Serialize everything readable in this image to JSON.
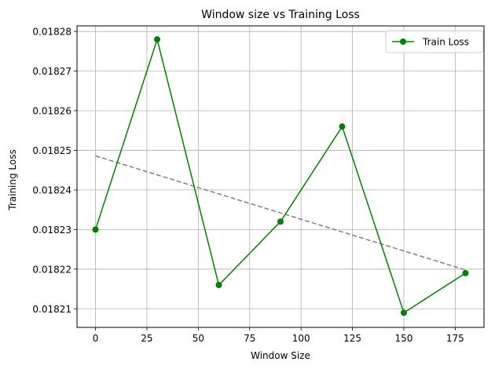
{
  "chart_data": {
    "type": "line",
    "title": "Window size vs Training Loss",
    "xlabel": "Window Size",
    "ylabel": "Training Loss",
    "x": [
      0,
      30,
      60,
      90,
      120,
      150,
      180
    ],
    "series": [
      {
        "name": "Train Loss",
        "color": "#008000",
        "marker": "circle",
        "values": [
          0.01823,
          0.018278,
          0.018216,
          0.018232,
          0.018256,
          0.018209,
          0.018219
        ]
      }
    ],
    "trend": {
      "style": "dashed",
      "color": "#808080",
      "x": [
        0,
        180
      ],
      "values": [
        0.0182486,
        0.0182198
      ]
    },
    "xlim": [
      -9,
      189
    ],
    "ylim": [
      0.0182053,
      0.0182814
    ],
    "xticks": [
      0,
      25,
      50,
      75,
      100,
      125,
      150,
      175
    ],
    "yticks": [
      0.01821,
      0.01822,
      0.01823,
      0.01824,
      0.01825,
      0.01826,
      0.01827,
      0.01828
    ],
    "ytick_labels": [
      "0.01821",
      "0.01822",
      "0.01823",
      "0.01824",
      "0.01825",
      "0.01826",
      "0.01827",
      "0.01828"
    ],
    "grid": true,
    "legend_position": "top-right"
  }
}
